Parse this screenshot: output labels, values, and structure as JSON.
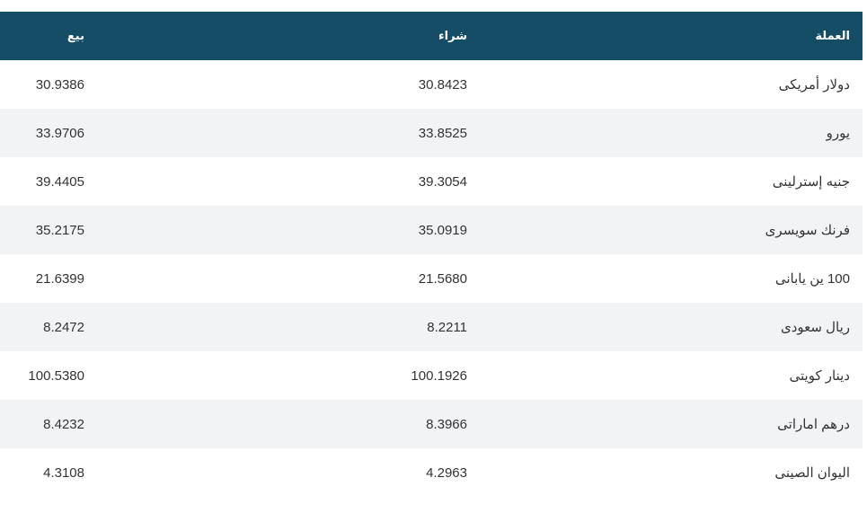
{
  "table": {
    "header": [
      "العملة",
      "شراء",
      "بيع"
    ],
    "rows": [
      [
        "دولار أمريكى",
        "30.8423",
        "30.9386"
      ],
      [
        "يورو",
        "33.8525",
        "33.9706"
      ],
      [
        "جنيه إسترلينى",
        "39.3054",
        "39.4405"
      ],
      [
        "فرنك سويسرى",
        "35.0919",
        "35.2175"
      ],
      [
        "100 ين يابانى",
        "21.5680",
        "21.6399"
      ],
      [
        "ريال سعودى",
        "8.2211",
        "8.2472"
      ],
      [
        "دينار كويتى",
        "100.1926",
        "100.5380"
      ],
      [
        "درهم اماراتى",
        "8.3966",
        "8.4232"
      ],
      [
        "اليوان الصينى",
        "4.2963",
        "4.3108"
      ]
    ]
  }
}
